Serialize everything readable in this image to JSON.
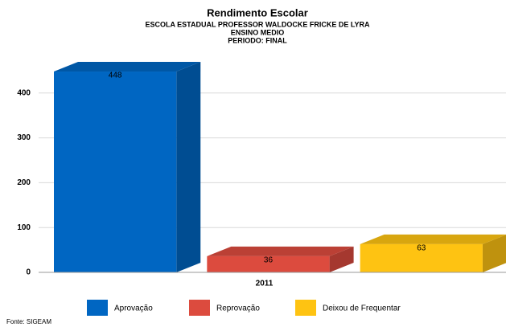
{
  "chart_data": {
    "type": "bar",
    "title": "Rendimento Escolar",
    "subtitle": [
      "ESCOLA ESTADUAL PROFESSOR WALDOCKE FRICKE DE LYRA",
      "ENSINO MEDIO",
      "PERIODO: FINAL"
    ],
    "categories": [
      "2011"
    ],
    "series": [
      {
        "name": "Aprovação",
        "color": "#0066c2",
        "values": [
          448
        ]
      },
      {
        "name": "Reprovação",
        "color": "#dc4b3e",
        "values": [
          36
        ]
      },
      {
        "name": "Deixou de Frequentar",
        "color": "#fec312",
        "values": [
          63
        ]
      }
    ],
    "ylim": [
      0,
      500
    ],
    "yticks": [
      0,
      100,
      200,
      300,
      400
    ],
    "grid": true,
    "source": "Fonte: SIGEAM"
  }
}
